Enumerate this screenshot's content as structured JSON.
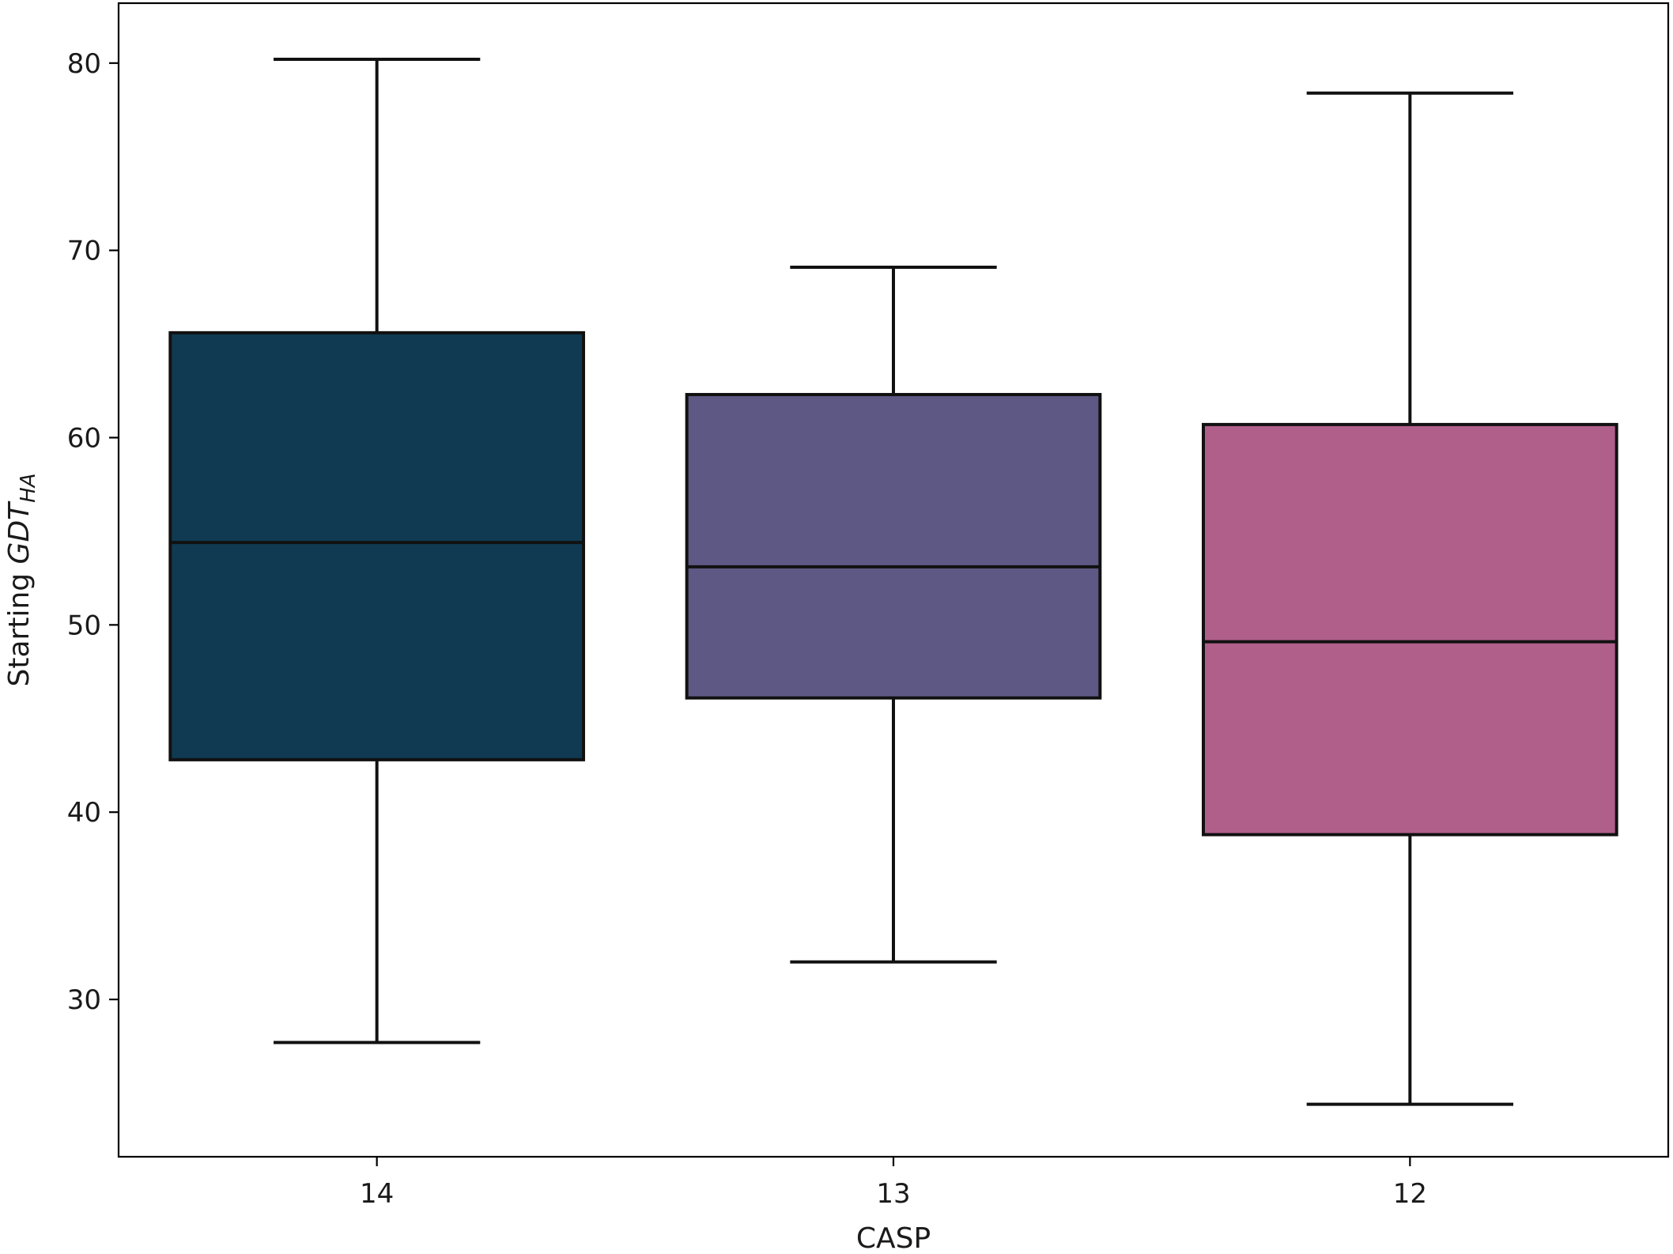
{
  "chart_data": {
    "type": "box",
    "categories": [
      "14",
      "13",
      "12"
    ],
    "series": [
      {
        "category": "14",
        "min": 27.7,
        "q1": 42.8,
        "median": 54.4,
        "q3": 65.6,
        "max": 80.2,
        "color": "#0f3a52"
      },
      {
        "category": "13",
        "min": 32.0,
        "q1": 46.1,
        "median": 53.1,
        "q3": 62.3,
        "max": 69.1,
        "color": "#5e5884"
      },
      {
        "category": "12",
        "min": 24.4,
        "q1": 38.8,
        "median": 49.1,
        "q3": 60.7,
        "max": 78.4,
        "color": "#b05f8a"
      }
    ],
    "xlabel": "CASP",
    "ylabel_main": "Starting ",
    "ylabel_italic": "GDT",
    "ylabel_sub": "HA",
    "ylim": [
      21.6,
      83.2
    ],
    "yticks": [
      30,
      40,
      50,
      60,
      70,
      80
    ],
    "grid": false
  }
}
